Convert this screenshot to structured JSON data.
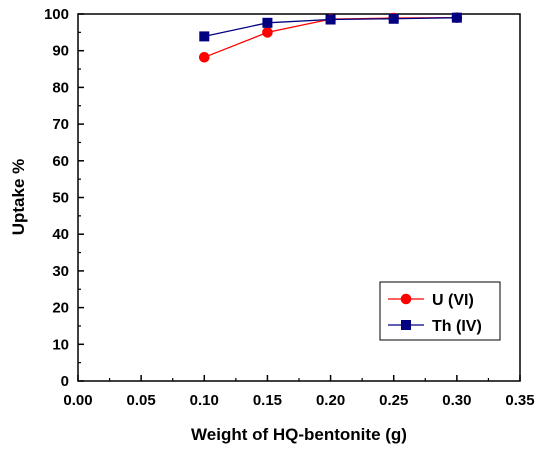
{
  "chart_data": {
    "type": "line",
    "title": "",
    "xlabel": "Weight of HQ-bentonite (g)",
    "ylabel": "Uptake %",
    "xlim": [
      0.0,
      0.35
    ],
    "ylim": [
      0,
      100
    ],
    "xticks": [
      "0.00",
      "0.05",
      "0.10",
      "0.15",
      "0.20",
      "0.25",
      "0.30",
      "0.35"
    ],
    "yticks": [
      "0",
      "10",
      "20",
      "30",
      "40",
      "50",
      "60",
      "70",
      "80",
      "90",
      "100"
    ],
    "grid": false,
    "legend_position": "bottom-right",
    "series": [
      {
        "name": "U (VI)",
        "marker": "circle",
        "color": "#ff0000",
        "x": [
          0.1,
          0.15,
          0.2,
          0.25,
          0.3
        ],
        "y": [
          88.2,
          95.0,
          98.6,
          98.9,
          99.0
        ]
      },
      {
        "name": "Th (IV)",
        "marker": "square",
        "color": "#000080",
        "x": [
          0.1,
          0.15,
          0.2,
          0.25,
          0.3
        ],
        "y": [
          93.9,
          97.6,
          98.5,
          98.7,
          99.0
        ]
      }
    ]
  }
}
